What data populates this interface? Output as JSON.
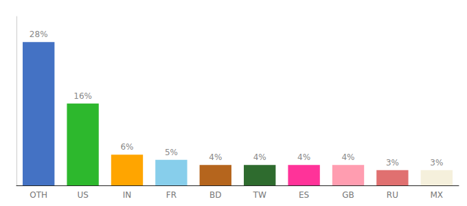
{
  "chart_data": {
    "type": "bar",
    "categories": [
      "OTH",
      "US",
      "IN",
      "FR",
      "BD",
      "TW",
      "ES",
      "GB",
      "RU",
      "MX"
    ],
    "values": [
      28,
      16,
      6,
      5,
      4,
      4,
      4,
      4,
      3,
      3
    ],
    "value_labels": [
      "28%",
      "16%",
      "6%",
      "5%",
      "4%",
      "4%",
      "4%",
      "4%",
      "3%",
      "3%"
    ],
    "colors": [
      "#4472c4",
      "#2db82d",
      "#ffa500",
      "#87ceeb",
      "#b5651d",
      "#2e6b2e",
      "#ff3399",
      "#ff9db0",
      "#e07070",
      "#f5f0dc"
    ],
    "ylim": [
      0,
      33
    ],
    "grid": false,
    "data_labels": true,
    "tick_labels": "x"
  }
}
